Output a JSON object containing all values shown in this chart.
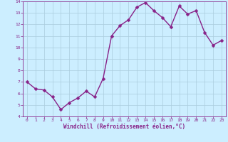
{
  "x": [
    0,
    1,
    2,
    3,
    4,
    5,
    6,
    7,
    8,
    9,
    10,
    11,
    12,
    13,
    14,
    15,
    16,
    17,
    18,
    19,
    20,
    21,
    22,
    23
  ],
  "y": [
    7.0,
    6.4,
    6.3,
    5.7,
    4.6,
    5.2,
    5.6,
    6.2,
    5.7,
    7.3,
    11.0,
    11.9,
    12.4,
    13.5,
    13.9,
    13.2,
    12.6,
    11.8,
    13.6,
    12.9,
    13.2,
    11.3,
    10.2,
    10.6
  ],
  "line_color": "#882288",
  "marker_color": "#882288",
  "bg_color": "#cceeff",
  "grid_color": "#aaccdd",
  "tick_color": "#882288",
  "label_color": "#882288",
  "xlabel": "Windchill (Refroidissement éolien,°C)",
  "ylim": [
    4,
    14
  ],
  "xlim": [
    -0.5,
    23.5
  ],
  "yticks": [
    4,
    5,
    6,
    7,
    8,
    9,
    10,
    11,
    12,
    13,
    14
  ],
  "xticks": [
    0,
    1,
    2,
    3,
    4,
    5,
    6,
    7,
    8,
    9,
    10,
    11,
    12,
    13,
    14,
    15,
    16,
    17,
    18,
    19,
    20,
    21,
    22,
    23
  ],
  "marker_size": 2.5,
  "line_width": 1.0
}
